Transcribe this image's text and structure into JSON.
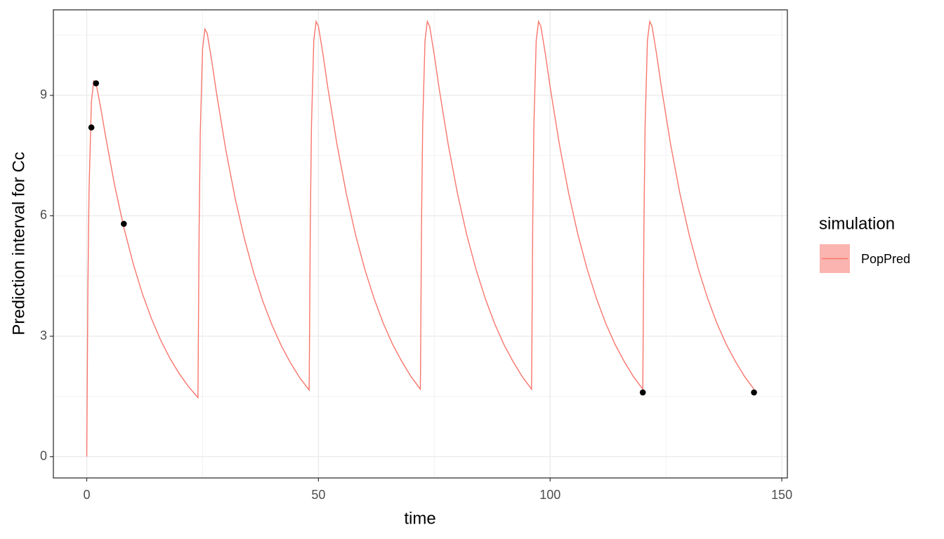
{
  "chart_data": {
    "type": "line",
    "xlabel": "time",
    "ylabel": "Prediction interval for Cc",
    "xlim": [
      -7.2,
      151.2
    ],
    "xticks": [
      0,
      50,
      100,
      150
    ],
    "ylim": [
      -0.53,
      11.13
    ],
    "yticks": [
      0,
      3,
      6,
      9
    ],
    "grid": true,
    "legend": {
      "title": "simulation",
      "position": "right"
    },
    "series": [
      {
        "name": "PopPred",
        "color": "#F8766D",
        "x": [
          0,
          0.25,
          0.5,
          1,
          1.5,
          2,
          3,
          4,
          6,
          8,
          10,
          12,
          14,
          16,
          18,
          20,
          22,
          24,
          24.25,
          24.5,
          25,
          25.5,
          26,
          27,
          28,
          30,
          32,
          34,
          36,
          38,
          40,
          42,
          44,
          46,
          48,
          48.25,
          48.5,
          49,
          49.5,
          50,
          51,
          52,
          54,
          56,
          58,
          60,
          62,
          64,
          66,
          68,
          70,
          72,
          72.25,
          72.5,
          73,
          73.5,
          74,
          75,
          76,
          78,
          80,
          82,
          84,
          86,
          88,
          90,
          92,
          94,
          96,
          96.25,
          96.5,
          97,
          97.5,
          98,
          99,
          100,
          102,
          104,
          106,
          108,
          110,
          112,
          114,
          116,
          118,
          120,
          120.25,
          120.5,
          121,
          121.5,
          122,
          123,
          124,
          126,
          128,
          130,
          132,
          134,
          136,
          138,
          140,
          142,
          144
        ],
        "values": [
          0,
          4.2,
          6.65,
          8.83,
          9.36,
          9.3,
          8.7,
          8.02,
          6.77,
          5.71,
          4.82,
          4.06,
          3.43,
          2.89,
          2.44,
          2.06,
          1.74,
          1.47,
          5.63,
          8.06,
          10.17,
          10.65,
          10.54,
          9.84,
          9.06,
          7.65,
          6.45,
          5.44,
          4.59,
          3.87,
          3.27,
          2.76,
          2.33,
          1.96,
          1.66,
          5.84,
          8.26,
          10.37,
          10.84,
          10.72,
          10.01,
          9.21,
          7.78,
          6.56,
          5.53,
          4.67,
          3.94,
          3.32,
          2.8,
          2.37,
          1.99,
          1.68,
          5.84,
          8.26,
          10.37,
          10.84,
          10.72,
          10.01,
          9.21,
          7.78,
          6.56,
          5.53,
          4.67,
          3.94,
          3.32,
          2.8,
          2.37,
          1.99,
          1.68,
          5.84,
          8.26,
          10.37,
          10.84,
          10.72,
          10.01,
          9.21,
          7.78,
          6.56,
          5.53,
          4.67,
          3.94,
          3.32,
          2.8,
          2.37,
          1.99,
          1.68,
          5.84,
          8.26,
          10.37,
          10.84,
          10.72,
          10.01,
          9.21,
          7.78,
          6.56,
          5.53,
          4.67,
          3.94,
          3.32,
          2.8,
          2.37,
          1.99,
          1.68
        ]
      }
    ],
    "observations": {
      "color": "#000000",
      "x": [
        1,
        2,
        8,
        120,
        144
      ],
      "values": [
        8.2,
        9.3,
        5.8,
        1.6,
        1.6
      ]
    }
  }
}
